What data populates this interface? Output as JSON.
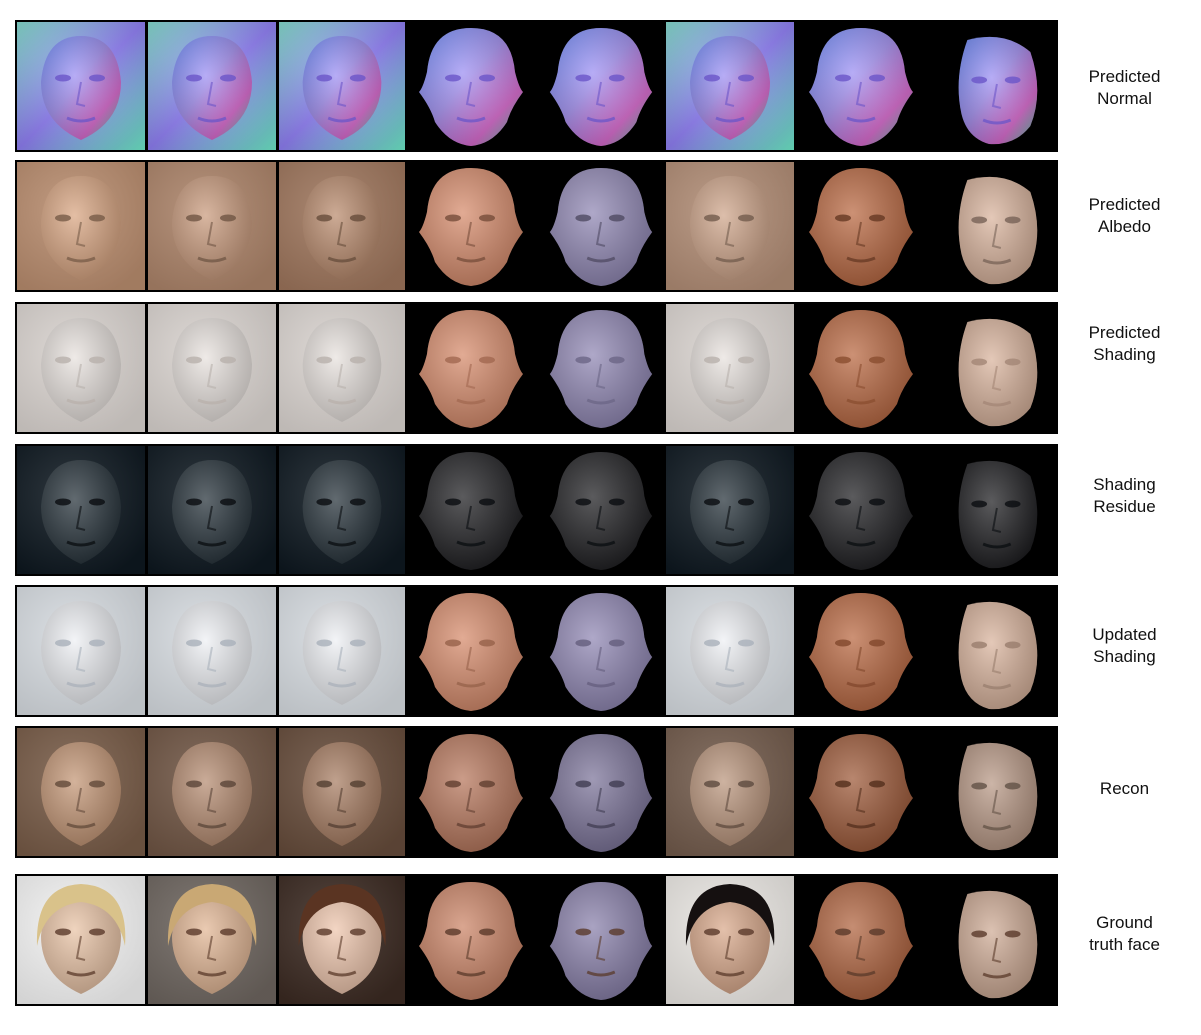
{
  "rows": [
    {
      "label": "Predicted\nNormal",
      "style": "normal"
    },
    {
      "label": "Predicted\nAlbedo",
      "style": "albedo"
    },
    {
      "label": "Predicted\nShading",
      "style": "shading"
    },
    {
      "label": "Shading\nResidue",
      "style": "residue"
    },
    {
      "label": "Updated\nShading",
      "style": "updated"
    },
    {
      "label": "Recon",
      "style": "recon"
    },
    {
      "label": "Ground\ntruth face",
      "style": "gt"
    }
  ],
  "columns": [
    {
      "kind": "photo",
      "tint": "#d9a581"
    },
    {
      "kind": "photo",
      "tint": "#c99a7c"
    },
    {
      "kind": "photo",
      "tint": "#b98a6c"
    },
    {
      "kind": "render",
      "tint": "#d68a6a",
      "pose": "front"
    },
    {
      "kind": "render",
      "tint": "#8f86b3",
      "pose": "front"
    },
    {
      "kind": "photo",
      "tint": "#cfa58a"
    },
    {
      "kind": "render",
      "tint": "#b8663f",
      "pose": "front"
    },
    {
      "kind": "render",
      "tint": "#d9b39c",
      "pose": "side"
    }
  ]
}
